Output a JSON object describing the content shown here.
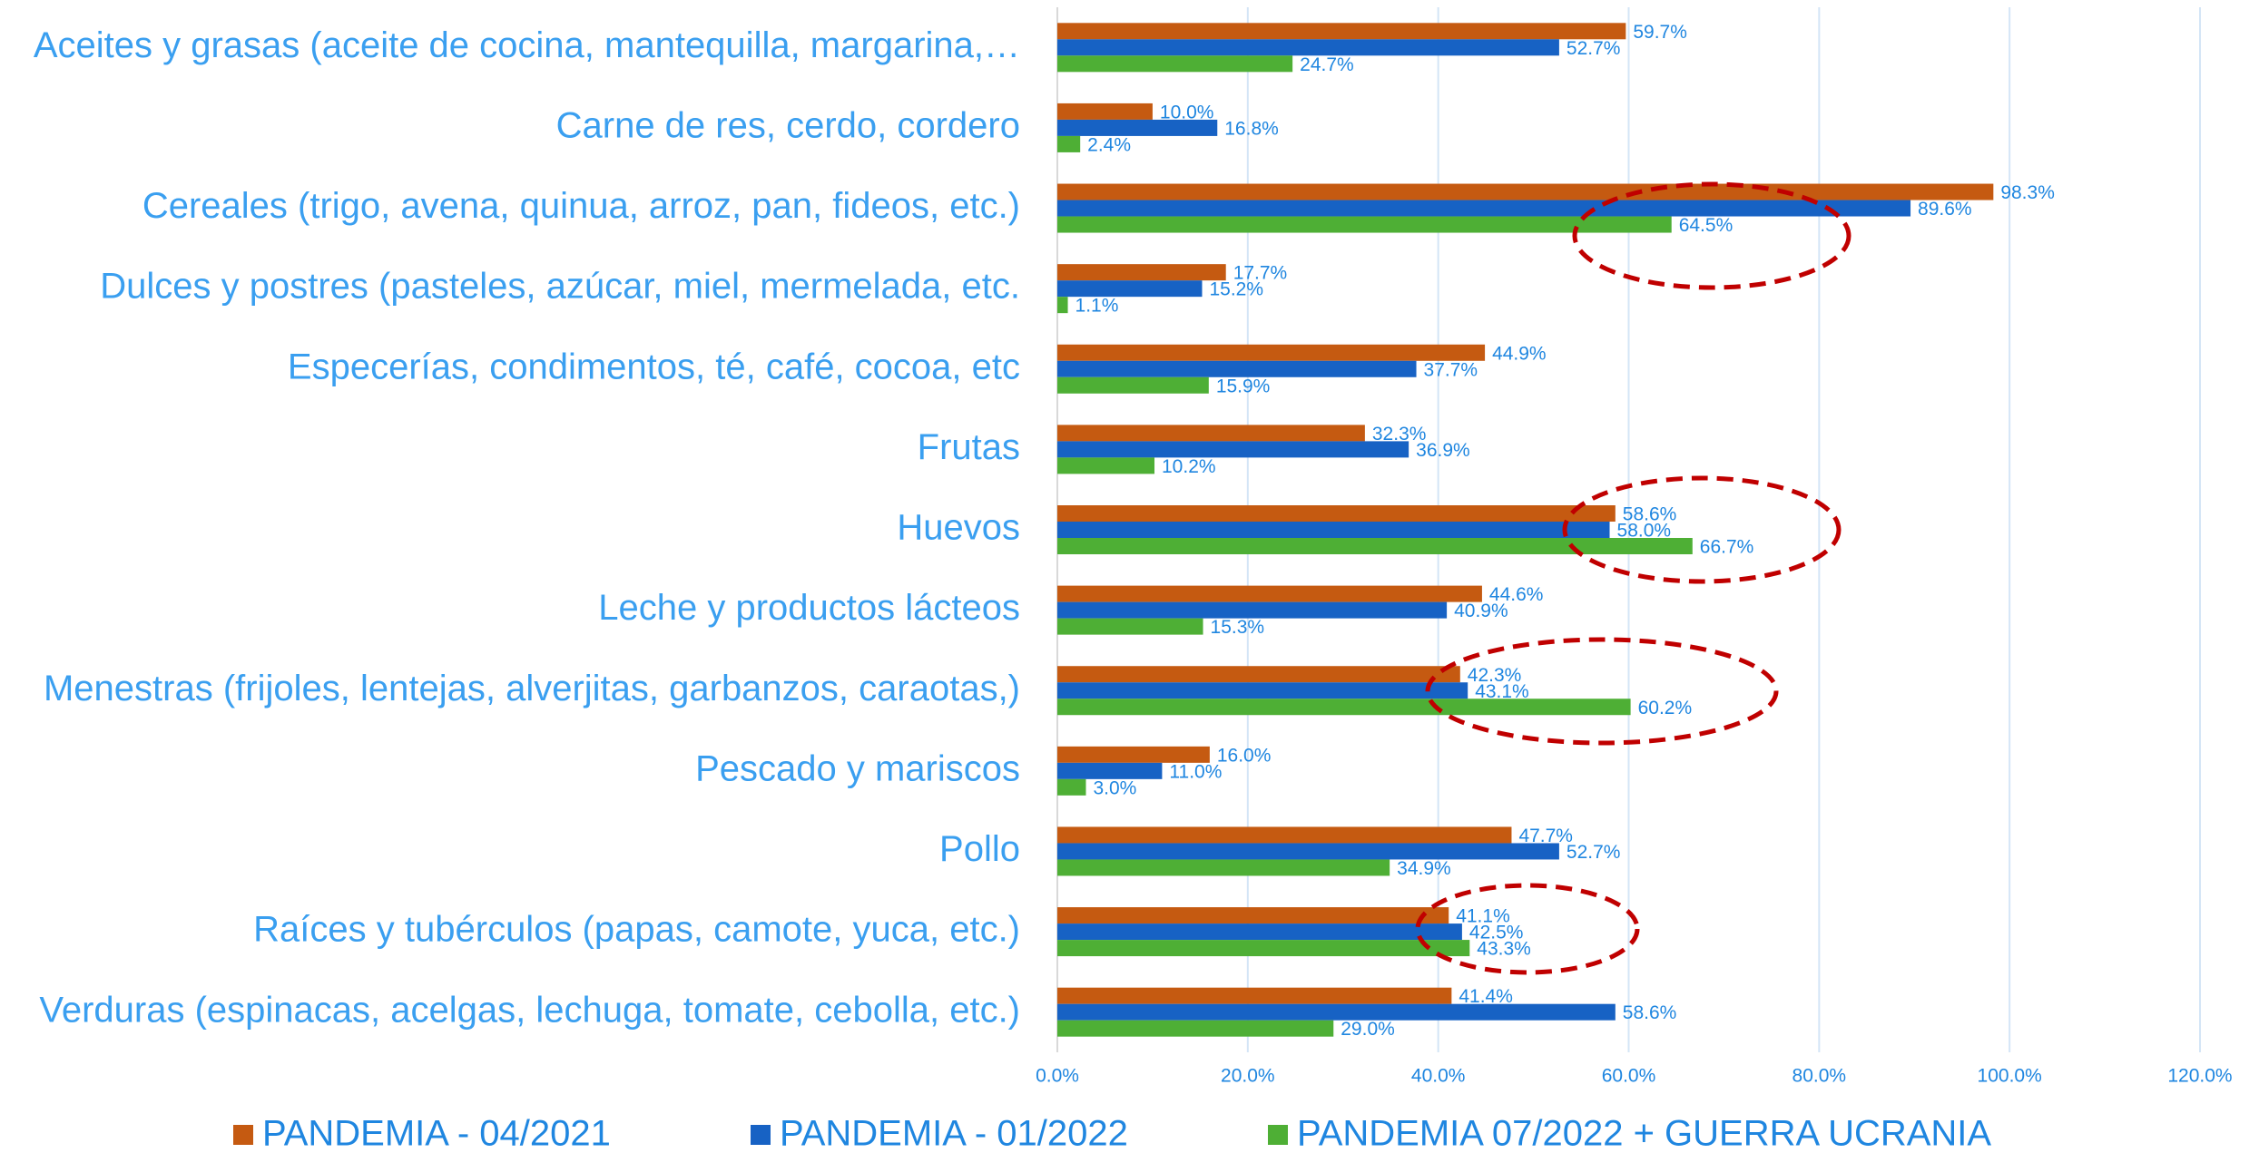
{
  "chart_data": {
    "type": "bar",
    "orientation": "horizontal",
    "categories": [
      "Aceites y grasas (aceite de cocina, mantequilla, margarina,…",
      "Carne de res, cerdo, cordero",
      "Cereales (trigo, avena, quinua, arroz, pan, fideos, etc.)",
      "Dulces y postres (pasteles, azúcar, miel, mermelada, etc.",
      "Especerías, condimentos, té, café, cocoa, etc",
      "Frutas",
      "Huevos",
      "Leche y productos lácteos",
      "Menestras (frijoles, lentejas, alverjitas, garbanzos, caraotas,)",
      "Pescado y mariscos",
      "Pollo",
      "Raíces y tubérculos (papas, camote, yuca, etc.)",
      "Verduras (espinacas, acelgas, lechuga, tomate, cebolla, etc.)"
    ],
    "series": [
      {
        "name": "PANDEMIA - 04/2021",
        "color": "#c55a11",
        "values": [
          59.7,
          10.0,
          98.3,
          17.7,
          44.9,
          32.3,
          58.6,
          44.6,
          42.3,
          16.0,
          47.7,
          41.1,
          41.4
        ],
        "value_labels": [
          "59.7%",
          "10.0%",
          "98.3%",
          "17.7%",
          "44.9%",
          "32.3%",
          "58.6%",
          "44.6%",
          "42.3%",
          "16.0%",
          "47.7%",
          "41.1%",
          "41.4%"
        ]
      },
      {
        "name": "PANDEMIA - 01/2022",
        "color": "#1762c4",
        "values": [
          52.7,
          16.8,
          89.6,
          15.2,
          37.7,
          36.9,
          58.0,
          40.9,
          43.1,
          11.0,
          52.7,
          42.5,
          58.6
        ],
        "value_labels": [
          "52.7%",
          "16.8%",
          "89.6%",
          "15.2%",
          "37.7%",
          "36.9%",
          "58.0%",
          "40.9%",
          "43.1%",
          "11.0%",
          "52.7%",
          "42.5%",
          "58.6%"
        ]
      },
      {
        "name": "PANDEMIA 07/2022 + GUERRA UCRANIA",
        "color": "#4eaf35",
        "values": [
          24.7,
          2.4,
          64.5,
          1.1,
          15.9,
          10.2,
          66.7,
          15.3,
          60.2,
          3.0,
          34.9,
          43.3,
          29.0
        ],
        "value_labels": [
          "24.7%",
          "2.4%",
          "64.5%",
          "1.1%",
          "15.9%",
          "10.2%",
          "66.7%",
          "15.3%",
          "60.2%",
          "3.0%",
          "34.9%",
          "43.3%",
          "29.0%"
        ]
      }
    ],
    "xlim": [
      0,
      120
    ],
    "xticks": [
      {
        "value": 0,
        "label": "0.0%"
      },
      {
        "value": 20,
        "label": "20.0%"
      },
      {
        "value": 40,
        "label": "40.0%"
      },
      {
        "value": 60,
        "label": "60.0%"
      },
      {
        "value": 80,
        "label": "80.0%"
      },
      {
        "value": 100,
        "label": "100.0%"
      },
      {
        "value": 120,
        "label": "120.0%"
      }
    ],
    "grid": true,
    "legend": "bottom"
  }
}
